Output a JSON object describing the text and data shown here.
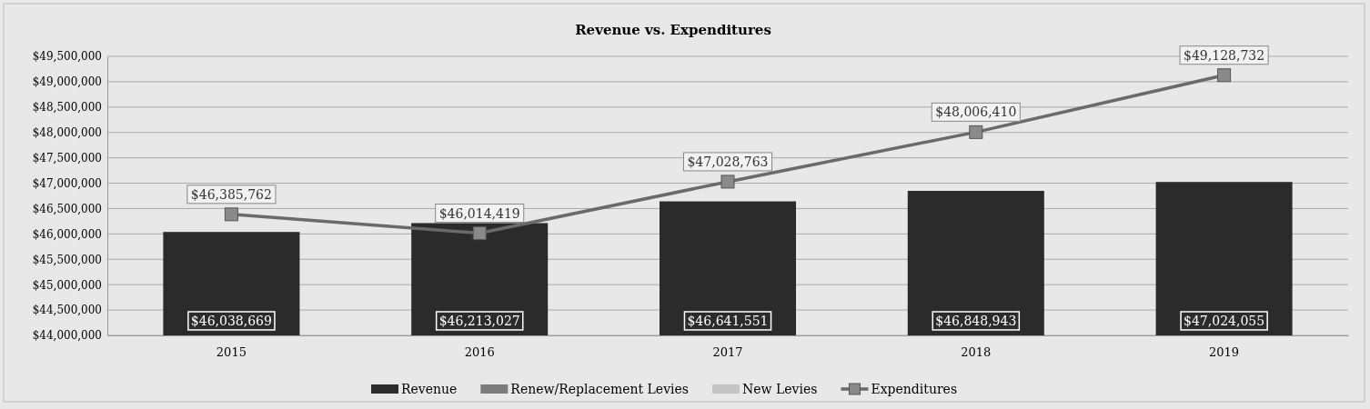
{
  "chart_data": {
    "type": "bar",
    "title": "Revenue vs. Expenditures",
    "categories": [
      "2015",
      "2016",
      "2017",
      "2018",
      "2019"
    ],
    "series": [
      {
        "name": "Revenue",
        "color": "#2b2b2b",
        "values": [
          46038669,
          46213027,
          46641551,
          46848943,
          47024055
        ],
        "value_labels": [
          "$46,038,669",
          "$46,213,027",
          "$46,641,551",
          "$46,848,943",
          "$47,024,055"
        ]
      },
      {
        "name": "Renew/Replacement Levies",
        "color": "#7c7c7c",
        "values": [
          null,
          null,
          null,
          null,
          null
        ]
      },
      {
        "name": "New Levies",
        "color": "#c4c4c4",
        "values": [
          null,
          null,
          null,
          null,
          null
        ]
      },
      {
        "name": "Expenditures",
        "type": "line",
        "color": "#6a6a6a",
        "marker": "square",
        "values": [
          46385762,
          46014419,
          47028763,
          48006410,
          49128732
        ],
        "value_labels": [
          "$46,385,762",
          "$46,014,419",
          "$47,028,763",
          "$48,006,410",
          "$49,128,732"
        ]
      }
    ],
    "ylim": [
      44000000,
      49500000
    ],
    "yticks": [
      {
        "value": 44000000,
        "label": "$44,000,000"
      },
      {
        "value": 44500000,
        "label": "$44,500,000"
      },
      {
        "value": 45000000,
        "label": "$45,000,000"
      },
      {
        "value": 45500000,
        "label": "$45,500,000"
      },
      {
        "value": 46000000,
        "label": "$46,000,000"
      },
      {
        "value": 46500000,
        "label": "$46,500,000"
      },
      {
        "value": 47000000,
        "label": "$47,000,000"
      },
      {
        "value": 47500000,
        "label": "$47,500,000"
      },
      {
        "value": 48000000,
        "label": "$48,000,000"
      },
      {
        "value": 48500000,
        "label": "$48,500,000"
      },
      {
        "value": 49000000,
        "label": "$49,000,000"
      },
      {
        "value": 49500000,
        "label": "$49,500,000"
      }
    ],
    "grid": "y",
    "legend": "bottom"
  }
}
